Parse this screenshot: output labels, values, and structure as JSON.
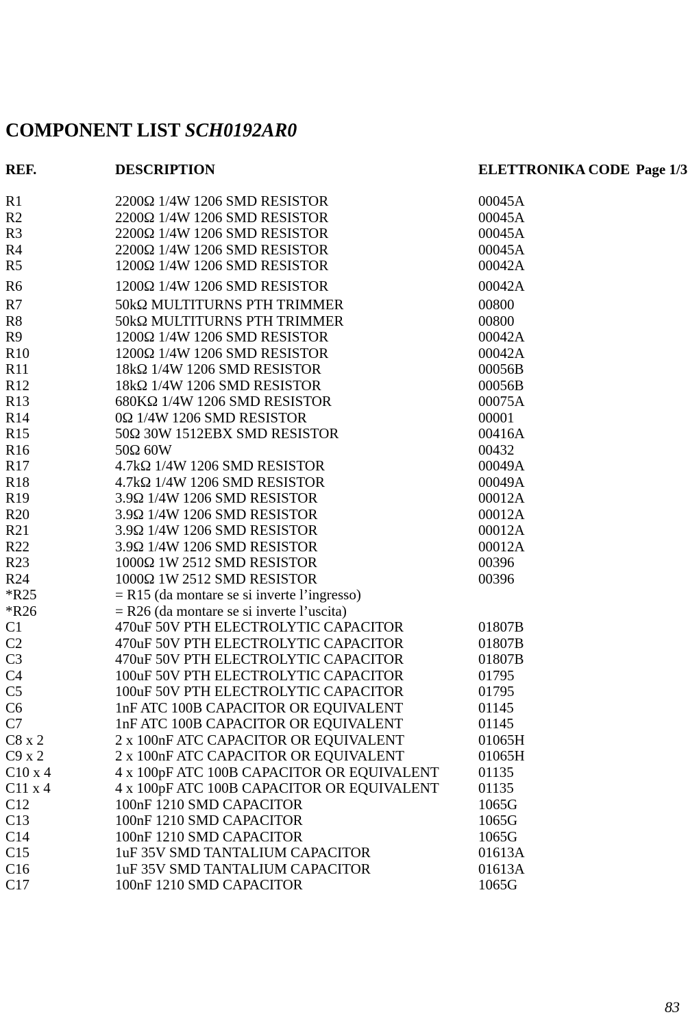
{
  "title_prefix": "COMPONENT LIST",
  "title_italic": "SCH0192AR0",
  "headers": {
    "ref": "REF.",
    "desc": "DESCRIPTION",
    "code": "ELETTRONIKA CODE",
    "page": "Page 1/3"
  },
  "rows": [
    {
      "ref": "R1",
      "desc": "2200Ω 1/4W 1206 SMD RESISTOR",
      "code": "00045A"
    },
    {
      "ref": "R2",
      "desc": "2200Ω 1/4W 1206 SMD RESISTOR",
      "code": "00045A"
    },
    {
      "ref": "R3",
      "desc": "2200Ω 1/4W 1206 SMD RESISTOR",
      "code": "00045A"
    },
    {
      "ref": "R4",
      "desc": "2200Ω 1/4W 1206 SMD RESISTOR",
      "code": "00045A"
    },
    {
      "ref": "R5",
      "desc": "1200Ω 1/4W 1206 SMD RESISTOR",
      "code": "00042A"
    },
    {
      "ref": "R6",
      "desc": "1200Ω 1/4W 1206 SMD RESISTOR",
      "code": "00042A",
      "gap_above": true,
      "gap_below": true
    },
    {
      "ref": "R7",
      "desc": "50kΩ MULTITURNS PTH TRIMMER",
      "code": "00800"
    },
    {
      "ref": "R8",
      "desc": "50kΩ MULTITURNS PTH TRIMMER",
      "code": "00800"
    },
    {
      "ref": "R9",
      "desc": "1200Ω 1/4W 1206 SMD RESISTOR",
      "code": "00042A"
    },
    {
      "ref": "R10",
      "desc": "1200Ω 1/4W 1206 SMD RESISTOR",
      "code": "00042A"
    },
    {
      "ref": "R11",
      "desc": "18kΩ 1/4W 1206 SMD RESISTOR",
      "code": "00056B"
    },
    {
      "ref": "R12",
      "desc": "18kΩ 1/4W 1206 SMD RESISTOR",
      "code": "00056B"
    },
    {
      "ref": "R13",
      "desc": "680KΩ 1/4W 1206 SMD RESISTOR",
      "code": "00075A"
    },
    {
      "ref": "R14",
      "desc": "0Ω 1/4W 1206 SMD RESISTOR",
      "code": "00001"
    },
    {
      "ref": "R15",
      "desc": "50Ω 30W 1512EBX SMD RESISTOR",
      "code": "00416A"
    },
    {
      "ref": "R16",
      "desc": "50Ω 60W",
      "code": "00432"
    },
    {
      "ref": "R17",
      "desc": "4.7kΩ 1/4W 1206 SMD RESISTOR",
      "code": "00049A"
    },
    {
      "ref": "R18",
      "desc": "4.7kΩ 1/4W 1206 SMD RESISTOR",
      "code": "00049A"
    },
    {
      "ref": "R19",
      "desc": "3.9Ω 1/4W 1206 SMD RESISTOR",
      "code": "00012A"
    },
    {
      "ref": "R20",
      "desc": "3.9Ω 1/4W 1206 SMD RESISTOR",
      "code": "00012A"
    },
    {
      "ref": "R21",
      "desc": "3.9Ω 1/4W 1206 SMD RESISTOR",
      "code": "00012A"
    },
    {
      "ref": "R22",
      "desc": "3.9Ω 1/4W 1206 SMD RESISTOR",
      "code": "00012A"
    },
    {
      "ref": "R23",
      "desc": "1000Ω 1W 2512 SMD RESISTOR",
      "code": "00396"
    },
    {
      "ref": "R24",
      "desc": "1000Ω 1W 2512 SMD RESISTOR",
      "code": "00396"
    },
    {
      "ref": "*R25",
      "desc": "= R15 (da montare se si inverte l’ingresso)",
      "code": ""
    },
    {
      "ref": "*R26",
      "desc": "= R26 (da montare se si inverte l’uscita)",
      "code": ""
    },
    {
      "ref": "C1",
      "desc": "470uF 50V PTH ELECTROLYTIC CAPACITOR",
      "code": "01807B"
    },
    {
      "ref": "C2",
      "desc": "470uF 50V PTH ELECTROLYTIC CAPACITOR",
      "code": "01807B"
    },
    {
      "ref": "C3",
      "desc": "470uF 50V PTH ELECTROLYTIC CAPACITOR",
      "code": "01807B"
    },
    {
      "ref": "C4",
      "desc": "100uF 50V PTH ELECTROLYTIC CAPACITOR",
      "code": "01795"
    },
    {
      "ref": "C5",
      "desc": "100uF 50V PTH ELECTROLYTIC CAPACITOR",
      "code": "01795"
    },
    {
      "ref": "C6",
      "desc": "1nF ATC 100B CAPACITOR OR EQUIVALENT",
      "code": "01145"
    },
    {
      "ref": "C7",
      "desc": "1nF ATC 100B CAPACITOR OR EQUIVALENT",
      "code": "01145"
    },
    {
      "ref": "C8 x 2",
      "desc": "2 x 100nF ATC CAPACITOR OR EQUIVALENT",
      "code": "01065H"
    },
    {
      "ref": "C9 x 2",
      "desc": "2 x 100nF ATC CAPACITOR OR EQUIVALENT",
      "code": "01065H"
    },
    {
      "ref": "C10 x 4",
      "desc": "4 x 100pF ATC 100B CAPACITOR OR EQUIVALENT",
      "code": "01135"
    },
    {
      "ref": "C11 x 4",
      "desc": "4 x 100pF ATC 100B CAPACITOR OR EQUIVALENT",
      "code": "01135"
    },
    {
      "ref": "C12",
      "desc": "100nF 1210 SMD CAPACITOR",
      "code": "1065G"
    },
    {
      "ref": "C13",
      "desc": "100nF 1210 SMD CAPACITOR",
      "code": "1065G"
    },
    {
      "ref": "C14",
      "desc": "100nF 1210 SMD CAPACITOR",
      "code": "1065G"
    },
    {
      "ref": "C15",
      "desc": "1uF 35V SMD TANTALIUM CAPACITOR",
      "code": "01613A"
    },
    {
      "ref": "C16",
      "desc": "1uF 35V SMD TANTALIUM CAPACITOR",
      "code": "01613A"
    },
    {
      "ref": "C17",
      "desc": "100nF 1210 SMD CAPACITOR",
      "code": "1065G"
    }
  ],
  "page_number": "83"
}
